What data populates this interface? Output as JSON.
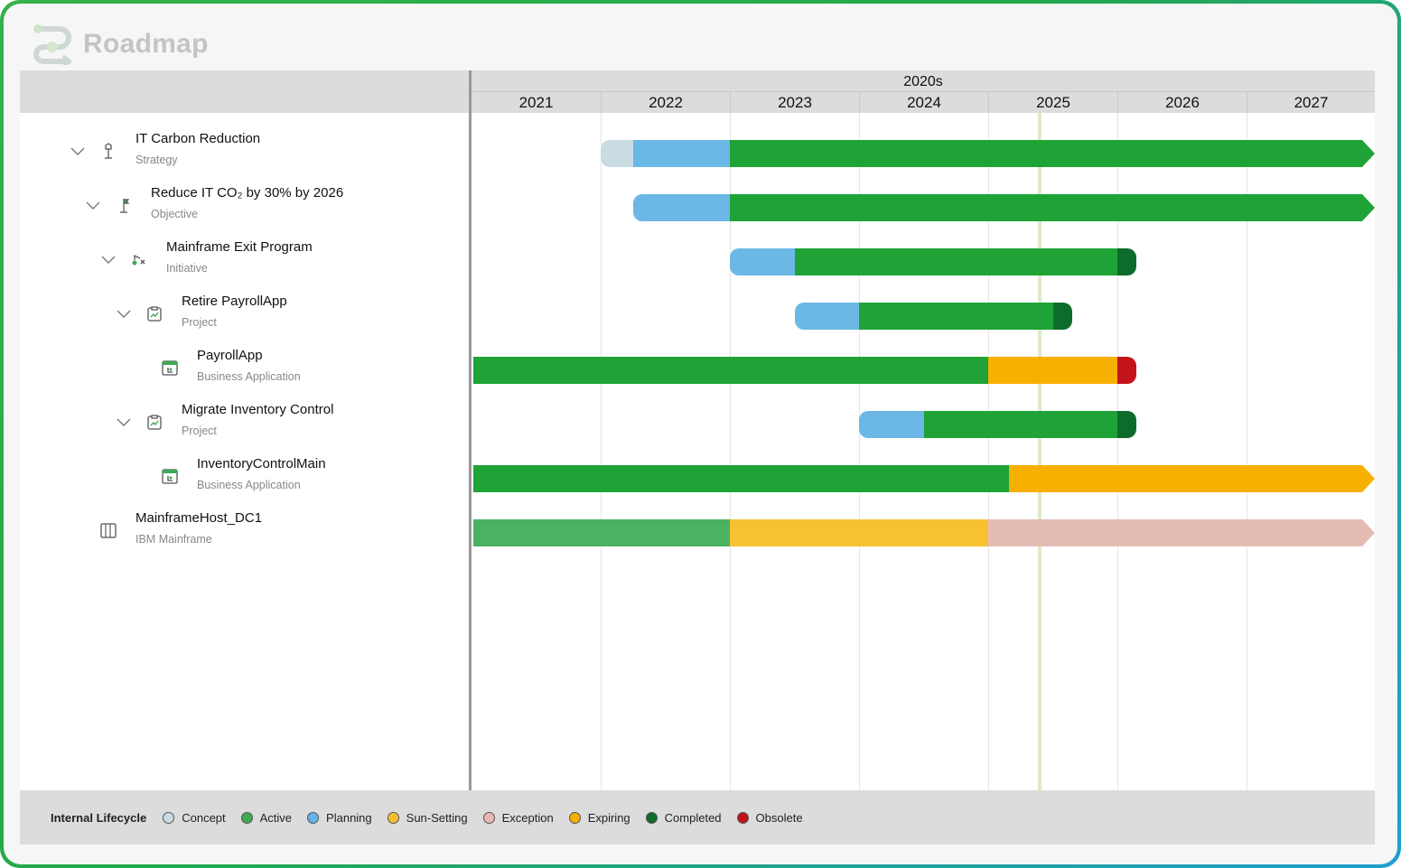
{
  "app": {
    "title": "Roadmap"
  },
  "timeline": {
    "decade": "2020s",
    "years": [
      "2021",
      "2022",
      "2023",
      "2024",
      "2025",
      "2026",
      "2027"
    ]
  },
  "rows": [
    {
      "name": "IT Carbon Reduction",
      "type": "Strategy",
      "icon": "strategy-icon",
      "expandable": true,
      "segments": [
        {
          "from": 2021.8,
          "to": 2022.05,
          "status": "Concept"
        },
        {
          "from": 2022.05,
          "to": 2022.8,
          "status": "Planning"
        },
        {
          "from": 2022.8,
          "to": 2028,
          "status": "Active"
        }
      ],
      "ends": "arrow"
    },
    {
      "name": "Reduce IT CO₂ by 30% by 2026",
      "type": "Objective",
      "icon": "objective-icon",
      "expandable": true,
      "segments": [
        {
          "from": 2022.05,
          "to": 2022.8,
          "status": "Planning"
        },
        {
          "from": 2022.8,
          "to": 2028,
          "status": "Active"
        }
      ],
      "ends": "arrow"
    },
    {
      "name": "Mainframe Exit Program",
      "type": "Initiative",
      "icon": "initiative-icon",
      "expandable": true,
      "segments": [
        {
          "from": 2022.8,
          "to": 2023.3,
          "status": "Planning"
        },
        {
          "from": 2023.3,
          "to": 2025.8,
          "status": "Active"
        },
        {
          "from": 2025.8,
          "to": 2025.95,
          "status": "Completed"
        }
      ],
      "ends": "round"
    },
    {
      "name": "Retire PayrollApp",
      "type": "Project",
      "icon": "project-icon",
      "expandable": true,
      "segments": [
        {
          "from": 2023.3,
          "to": 2023.8,
          "status": "Planning"
        },
        {
          "from": 2023.8,
          "to": 2025.3,
          "status": "Active"
        },
        {
          "from": 2025.3,
          "to": 2025.45,
          "status": "Completed"
        }
      ],
      "ends": "round"
    },
    {
      "name": "PayrollApp",
      "type": "Business Application",
      "icon": "application-icon",
      "expandable": false,
      "segments": [
        {
          "from": 2020.8,
          "to": 2024.8,
          "status": "Active"
        },
        {
          "from": 2024.8,
          "to": 2025.8,
          "status": "Expiring"
        },
        {
          "from": 2025.8,
          "to": 2025.95,
          "status": "Obsolete"
        }
      ],
      "ends": "round-right"
    },
    {
      "name": "Migrate Inventory Control",
      "type": "Project",
      "icon": "project-icon",
      "expandable": true,
      "segments": [
        {
          "from": 2023.8,
          "to": 2024.3,
          "status": "Planning"
        },
        {
          "from": 2024.3,
          "to": 2025.8,
          "status": "Active"
        },
        {
          "from": 2025.8,
          "to": 2025.95,
          "status": "Completed"
        }
      ],
      "ends": "round"
    },
    {
      "name": "InventoryControlMain",
      "type": "Business Application",
      "icon": "application-icon",
      "expandable": false,
      "segments": [
        {
          "from": 2020.8,
          "to": 2024.96,
          "status": "Active"
        },
        {
          "from": 2024.96,
          "to": 2028,
          "status": "Expiring"
        }
      ],
      "ends": "arrow"
    },
    {
      "name": "MainframeHost_DC1",
      "type": "IBM Mainframe",
      "icon": "mainframe-icon",
      "expandable": false,
      "segments": [
        {
          "from": 2020.8,
          "to": 2022.8,
          "status": "Active"
        },
        {
          "from": 2022.8,
          "to": 2024.8,
          "status": "Sun-Setting"
        },
        {
          "from": 2024.8,
          "to": 2028,
          "status": "Exception"
        }
      ],
      "ends": "arrow"
    }
  ],
  "today": 2025.2,
  "legend": {
    "title": "Internal Lifecycle",
    "items": [
      {
        "label": "Concept",
        "color": "#c9dce4"
      },
      {
        "label": "Active",
        "color": "#3fa955"
      },
      {
        "label": "Planning",
        "color": "#64b3e6"
      },
      {
        "label": "Sun-Setting",
        "color": "#f6bf2f"
      },
      {
        "label": "Exception",
        "color": "#e6b8b0"
      },
      {
        "label": "Expiring",
        "color": "#f5ae00"
      },
      {
        "label": "Completed",
        "color": "#0e6b2a"
      },
      {
        "label": "Obsolete",
        "color": "#c0111a"
      }
    ]
  },
  "status_colors": {
    "Concept": "#c9dce4",
    "Planning": "#6bb8e6",
    "Active": "#1fa337",
    "Completed": "#0d6b2b",
    "Expiring": "#f7b000",
    "Obsolete": "#c4141b",
    "Sun-Setting": "#f7c131",
    "Exception": "#e5bcb3"
  },
  "row_overrides": {
    "7": {
      "Active": "#4ab260"
    }
  }
}
